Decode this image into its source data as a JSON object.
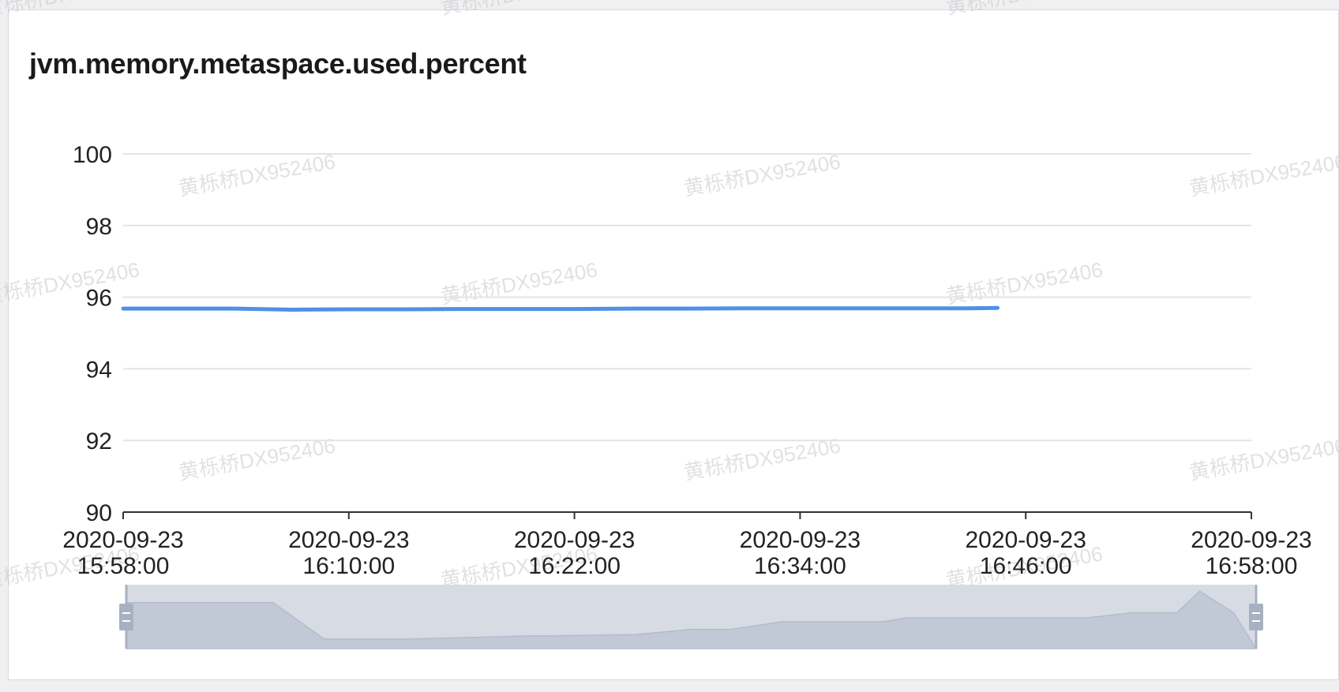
{
  "panel": {
    "title": "jvm.memory.metaspace.used.percent"
  },
  "watermark_text": "黄栎桥DX952406",
  "colors": {
    "line": "#4e90e8",
    "grid": "#e4e4e6",
    "axis": "#333333",
    "text": "#222222",
    "slider_bg": "#d6dbe4",
    "slider_area": "#c2c9d6",
    "slider_handle": "#a7b1c2"
  },
  "chart_data": {
    "type": "line",
    "title": "jvm.memory.metaspace.used.percent",
    "xlabel": "",
    "ylabel": "",
    "x_ticks": [
      [
        "2020-09-23",
        "15:58:00"
      ],
      [
        "2020-09-23",
        "16:10:00"
      ],
      [
        "2020-09-23",
        "16:22:00"
      ],
      [
        "2020-09-23",
        "16:34:00"
      ],
      [
        "2020-09-23",
        "16:46:00"
      ],
      [
        "2020-09-23",
        "16:58:00"
      ]
    ],
    "y_ticks": [
      "100",
      "98",
      "96",
      "94",
      "92",
      "90"
    ],
    "ylim": [
      90,
      100
    ],
    "xlim": [
      "2020-09-23 15:58:00",
      "2020-09-23 16:58:00"
    ],
    "grid": true,
    "series": [
      {
        "x": [
          "2020-09-23 15:58:00",
          "2020-09-23 16:01:00",
          "2020-09-23 16:04:00",
          "2020-09-23 16:07:00",
          "2020-09-23 16:10:00",
          "2020-09-23 16:13:00",
          "2020-09-23 16:16:00",
          "2020-09-23 16:19:00",
          "2020-09-23 16:22:00",
          "2020-09-23 16:25:00",
          "2020-09-23 16:28:00",
          "2020-09-23 16:31:00",
          "2020-09-23 16:34:00",
          "2020-09-23 16:37:00",
          "2020-09-23 16:40:00",
          "2020-09-23 16:43:00",
          "2020-09-23 16:44:30"
        ],
        "values": [
          95.68,
          95.68,
          95.68,
          95.65,
          95.66,
          95.66,
          95.67,
          95.67,
          95.67,
          95.68,
          95.68,
          95.69,
          95.69,
          95.69,
          95.69,
          95.69,
          95.7
        ]
      }
    ],
    "data_zoom": {
      "start": "2020-09-23 15:58:00",
      "end": "2020-09-23 16:58:00",
      "overview": [
        [
          0,
          0.72
        ],
        [
          0.13,
          0.72
        ],
        [
          0.175,
          0.15
        ],
        [
          0.25,
          0.15
        ],
        [
          0.36,
          0.2
        ],
        [
          0.38,
          0.2
        ],
        [
          0.45,
          0.22
        ],
        [
          0.5,
          0.3
        ],
        [
          0.535,
          0.3
        ],
        [
          0.58,
          0.42
        ],
        [
          0.67,
          0.42
        ],
        [
          0.69,
          0.48
        ],
        [
          0.79,
          0.48
        ],
        [
          0.85,
          0.48
        ],
        [
          0.89,
          0.56
        ],
        [
          0.93,
          0.56
        ],
        [
          0.95,
          0.9
        ],
        [
          0.98,
          0.56
        ]
      ]
    }
  }
}
